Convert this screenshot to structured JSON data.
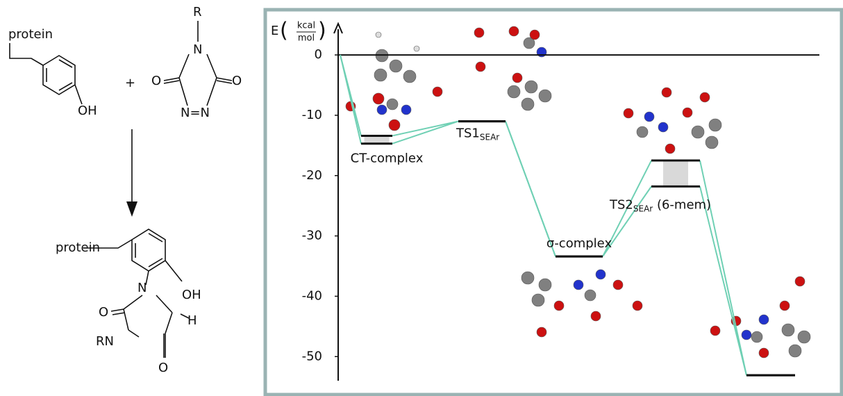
{
  "scheme": {
    "labels": [
      "protein",
      "OH",
      "+",
      "R",
      "N",
      "O",
      "O",
      "N=N",
      "protein",
      "OH",
      "N",
      "H",
      "O",
      "RN",
      "O"
    ]
  },
  "chart_data": {
    "type": "energy-profile",
    "ylabel": "E",
    "ylabel_numerator": "kcal",
    "ylabel_denominator": "mol",
    "categories": [
      null,
      "CT-complex",
      "TS1",
      "σ-complex",
      "TS2",
      null
    ],
    "subscripts": [
      null,
      null,
      "SEAr",
      null,
      "SEAr",
      null
    ],
    "suffixes": [
      null,
      null,
      null,
      null,
      " (6-mem)",
      null
    ],
    "series": [
      {
        "color": "#6fd0b4",
        "values": [
          0,
          -13.4,
          -11,
          -33.4,
          -17.5,
          -53.1
        ]
      },
      {
        "color": "#6fd0b4",
        "values": [
          0,
          -14.7,
          -11,
          -33.4,
          -21.8,
          -53.1
        ]
      }
    ],
    "ylim": [
      4.5,
      -54
    ],
    "yticks": [
      0,
      -10,
      -20,
      -30,
      -40,
      -50
    ]
  }
}
